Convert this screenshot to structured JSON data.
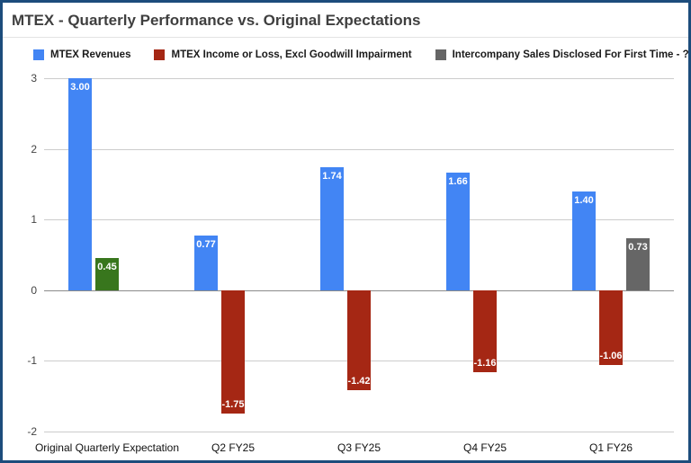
{
  "frame": {
    "border_color": "#1c4c7c",
    "background": "#ffffff"
  },
  "chart_data": {
    "type": "bar",
    "title": "MTEX - Quarterly Performance vs. Original Expectations",
    "xlabel": "",
    "ylabel": "",
    "ylim": [
      -2,
      3
    ],
    "yticks": [
      3,
      2,
      1,
      0,
      -1,
      -2
    ],
    "grid": true,
    "legend_position": "top",
    "categories": [
      "Original Quarterly Expectation",
      "Q2 FY25",
      "Q3 FY25",
      "Q4 FY25",
      "Q1 FY26"
    ],
    "series": [
      {
        "name": "MTEX Revenues",
        "color": "#4285f4",
        "values": [
          3.0,
          0.77,
          1.74,
          1.66,
          1.4
        ],
        "labels": [
          "3.00",
          "0.77",
          "1.74",
          "1.66",
          "1.40"
        ],
        "point_colors": [
          null,
          null,
          null,
          null,
          null
        ]
      },
      {
        "name": "MTEX Income or Loss, Excl Goodwill Impairment",
        "color": "#a52714",
        "values": [
          0.45,
          -1.75,
          -1.42,
          -1.16,
          -1.06
        ],
        "labels": [
          "0.45",
          "-1.75",
          "-1.42",
          "-1.16",
          "-1.06"
        ],
        "point_colors": [
          "#38761d",
          null,
          null,
          null,
          null
        ]
      },
      {
        "name": "Intercompany Sales Disclosed For First Time - ?????",
        "color": "#666666",
        "values": [
          null,
          null,
          null,
          null,
          0.73
        ],
        "labels": [
          null,
          null,
          null,
          null,
          "0.73"
        ],
        "point_colors": [
          null,
          null,
          null,
          null,
          null
        ]
      }
    ]
  }
}
